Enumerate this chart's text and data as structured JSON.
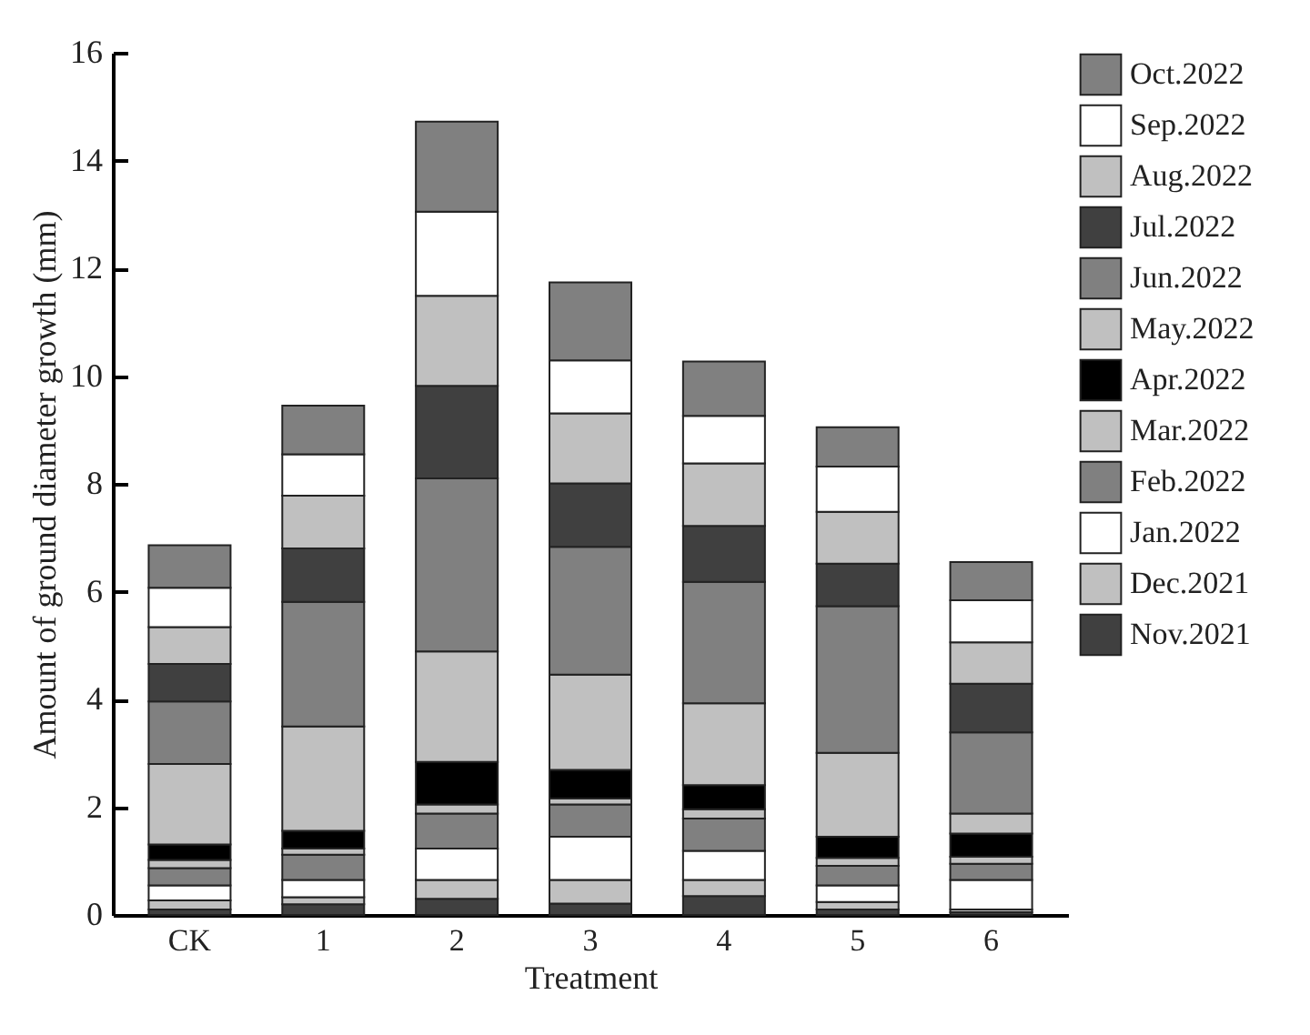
{
  "chart_data": {
    "type": "bar",
    "stacked": true,
    "xlabel": "Treatment",
    "ylabel": "Amount of ground diameter growth (mm)",
    "categories": [
      "CK",
      "1",
      "2",
      "3",
      "4",
      "5",
      "6"
    ],
    "ylim": [
      0,
      16
    ],
    "yticks": [
      0,
      2,
      4,
      6,
      8,
      10,
      12,
      14,
      16
    ],
    "legend": "top right",
    "grid": false,
    "series": [
      {
        "name": "Nov.2021",
        "color": "#404040",
        "values": [
          0.1,
          0.2,
          0.3,
          0.21,
          0.35,
          0.1,
          0.05
        ]
      },
      {
        "name": "Dec.2021",
        "color": "#c0c0c0",
        "values": [
          0.17,
          0.13,
          0.35,
          0.44,
          0.3,
          0.14,
          0.05
        ]
      },
      {
        "name": "Jan.2022",
        "color": "#ffffff",
        "values": [
          0.28,
          0.32,
          0.58,
          0.8,
          0.54,
          0.31,
          0.55
        ]
      },
      {
        "name": "Feb.2022",
        "color": "#808080",
        "values": [
          0.32,
          0.47,
          0.65,
          0.6,
          0.6,
          0.36,
          0.3
        ]
      },
      {
        "name": "Mar.2022",
        "color": "#c0c0c0",
        "values": [
          0.15,
          0.11,
          0.17,
          0.11,
          0.17,
          0.15,
          0.13
        ]
      },
      {
        "name": "Apr.2022",
        "color": "#000000",
        "values": [
          0.29,
          0.33,
          0.79,
          0.53,
          0.45,
          0.39,
          0.43
        ]
      },
      {
        "name": "May.2022",
        "color": "#c0c0c0",
        "values": [
          1.49,
          1.94,
          2.05,
          1.77,
          1.52,
          1.56,
          0.37
        ]
      },
      {
        "name": "Jun.2022",
        "color": "#808080",
        "values": [
          1.16,
          2.31,
          3.21,
          2.37,
          2.25,
          2.72,
          1.51
        ]
      },
      {
        "name": "Jul.2022",
        "color": "#404040",
        "values": [
          0.7,
          0.99,
          1.72,
          1.18,
          1.04,
          0.79,
          0.9
        ]
      },
      {
        "name": "Aug.2022",
        "color": "#c0c0c0",
        "values": [
          0.68,
          0.98,
          1.67,
          1.3,
          1.16,
          0.96,
          0.77
        ]
      },
      {
        "name": "Sep.2022",
        "color": "#ffffff",
        "values": [
          0.73,
          0.77,
          1.56,
          0.98,
          0.88,
          0.84,
          0.78
        ]
      },
      {
        "name": "Oct.2022",
        "color": "#808080",
        "values": [
          0.79,
          0.9,
          1.67,
          1.45,
          1.01,
          0.73,
          0.71
        ]
      }
    ]
  }
}
